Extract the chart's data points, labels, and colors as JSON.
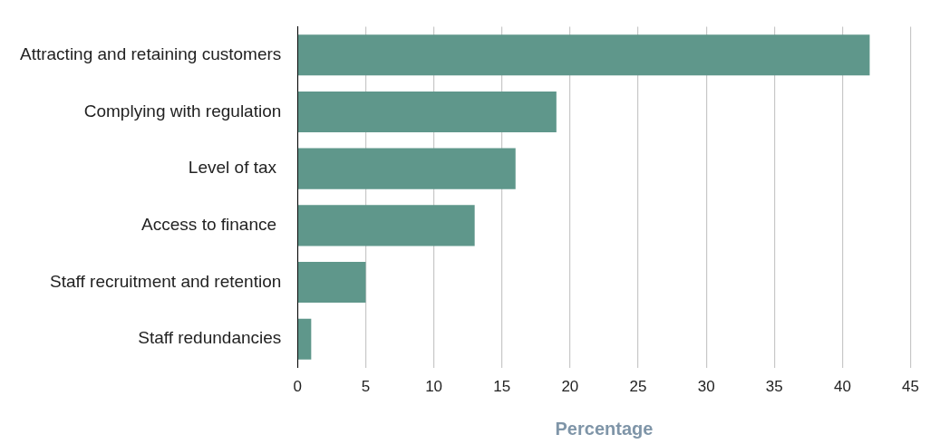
{
  "chart_data": {
    "type": "bar",
    "orientation": "horizontal",
    "xlabel": "Percentage",
    "categories": [
      "Attracting and retaining customers",
      "Complying with regulation",
      "Level of tax ",
      "Access to finance ",
      "Staff recruitment and retention",
      "Staff redundancies"
    ],
    "values": [
      42,
      19,
      16,
      13,
      5,
      1
    ],
    "color": "#5f978b",
    "xlim": [
      0,
      45
    ],
    "xticks": [
      0,
      5,
      10,
      15,
      20,
      25,
      30,
      35,
      40,
      45
    ],
    "grid": "x",
    "legend": false
  }
}
